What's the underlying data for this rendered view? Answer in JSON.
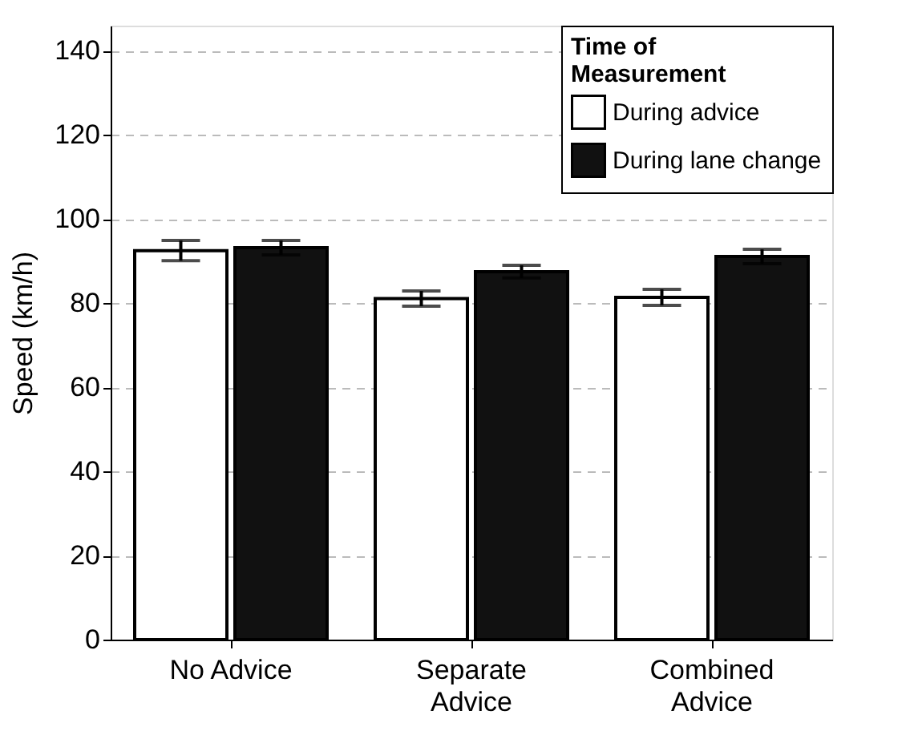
{
  "chart_data": {
    "type": "bar",
    "categories": [
      "No Advice",
      "Separate\nAdvice",
      "Combined\nAdvice"
    ],
    "ylabel": "Speed (km/h)",
    "legend_title": "Time of\nMeasurement",
    "series": [
      {
        "name": "During advice",
        "color": "#ffffff",
        "values": [
          92.5,
          81.1,
          81.4
        ],
        "errors": [
          2.4,
          1.8,
          1.9
        ]
      },
      {
        "name": "During lane change",
        "color": "#111111",
        "values": [
          93.2,
          87.5,
          91.1
        ],
        "errors": [
          1.7,
          1.5,
          1.7
        ]
      }
    ],
    "ylim": [
      0,
      146
    ],
    "yticks": [
      0,
      20,
      40,
      60,
      80,
      100,
      120,
      140
    ],
    "grid": "y",
    "legend": "top right"
  }
}
